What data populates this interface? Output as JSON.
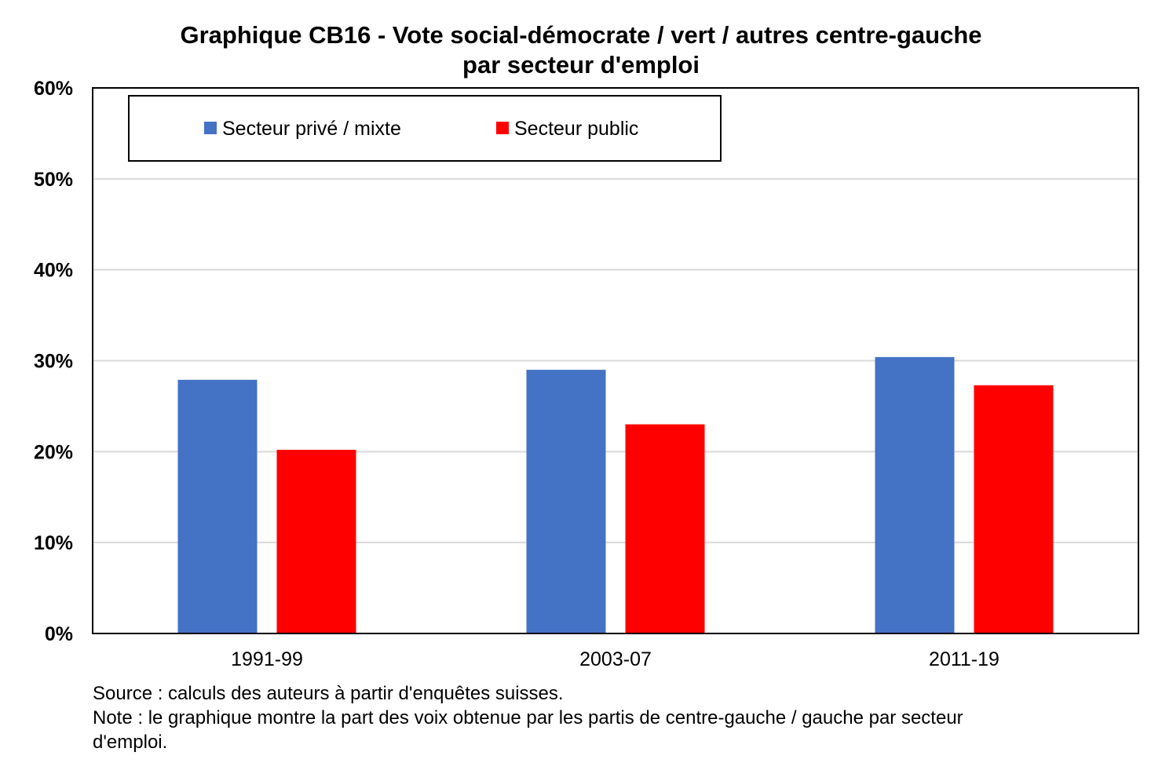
{
  "chart_data": {
    "type": "bar",
    "title_lines": [
      "Graphique CB16 - Vote social-démocrate / vert / autres centre-gauche",
      "par secteur d'emploi"
    ],
    "xlabel": "",
    "ylabel": "",
    "categories": [
      "1991-99",
      "2003-07",
      "2011-19"
    ],
    "series": [
      {
        "name": "Secteur privé / mixte",
        "color": "#4472C4",
        "values": [
          0.279,
          0.29,
          0.304
        ]
      },
      {
        "name": "Secteur public",
        "color": "#FF0000",
        "values": [
          0.202,
          0.23,
          0.273
        ]
      }
    ],
    "ylim": [
      0,
      0.6
    ],
    "yticks": [
      0,
      0.1,
      0.2,
      0.3,
      0.4,
      0.5,
      0.6
    ],
    "ytick_labels": [
      "0%",
      "10%",
      "20%",
      "30%",
      "40%",
      "50%",
      "60%"
    ],
    "grid": true,
    "legend_position": "top-left"
  },
  "notes": [
    "Source : calculs des auteurs à partir d'enquêtes suisses.",
    "Note : le graphique montre la part des voix obtenue par les partis de centre-gauche / gauche par secteur",
    "d'emploi."
  ]
}
